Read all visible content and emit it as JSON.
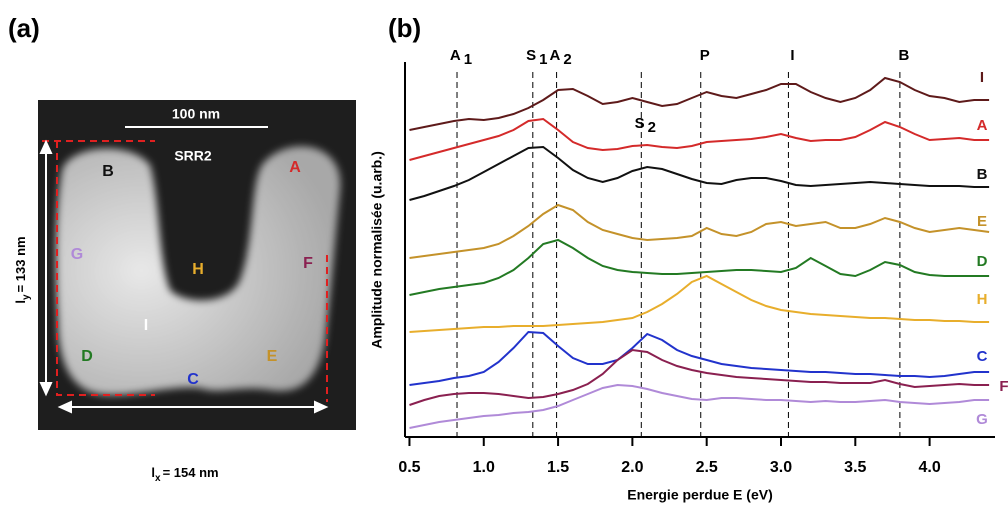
{
  "image_panel": {
    "panel_label": "(a)",
    "scale_bar": "100 nm",
    "name": "SRR2",
    "points": [
      "B",
      "A",
      "G",
      "H",
      "F",
      "I",
      "D",
      "E",
      "C"
    ],
    "ly": {
      "base": "l",
      "sub": "y",
      "text": "= 133 nm"
    },
    "lx": {
      "base": "l",
      "sub": "x",
      "text": "= 154 nm"
    }
  },
  "chart_data": {
    "type": "line",
    "panel_label": "(b)",
    "x_label": "Energie perdue E (eV)",
    "y_label": "Amplitude normalisée (u.arb.)",
    "xlim": [
      0.47,
      4.44
    ],
    "ylim": [
      0,
      375
    ],
    "xticks": [
      {
        "value": 0.5,
        "label": "0.5"
      },
      {
        "value": 1.0,
        "label": "1.0"
      },
      1.5,
      {
        "value": 2.0,
        "label": "2.0"
      },
      2.5,
      {
        "value": 3.0,
        "label": "3.0"
      },
      3.5,
      {
        "value": 4.0,
        "label": "4.0"
      }
    ],
    "markers": [
      {
        "label": "A",
        "sub": "1",
        "x": 0.82
      },
      {
        "label": "S",
        "sub": "1",
        "x": 1.33
      },
      {
        "label": "A",
        "sub": "2",
        "x": 1.49
      },
      {
        "label": "S",
        "sub": "2",
        "x": 2.06
      },
      {
        "label": "P",
        "x": 2.46
      },
      {
        "label": "I",
        "x": 3.05
      },
      {
        "label": "B",
        "x": 3.8
      }
    ],
    "x": [
      0.5,
      0.6,
      0.7,
      0.8,
      0.9,
      1.0,
      1.1,
      1.2,
      1.3,
      1.4,
      1.5,
      1.6,
      1.7,
      1.8,
      1.9,
      2.0,
      2.1,
      2.2,
      2.3,
      2.4,
      2.5,
      2.6,
      2.7,
      2.8,
      2.9,
      3.0,
      3.1,
      3.2,
      3.3,
      3.4,
      3.5,
      3.6,
      3.7,
      3.8,
      3.9,
      4.0,
      4.1,
      4.2,
      4.3,
      4.4
    ],
    "series": [
      {
        "name": "I",
        "color": "#5e1a1a",
        "values": [
          307,
          310,
          313,
          316,
          318,
          317,
          319,
          323,
          329,
          337,
          347,
          348,
          341,
          333,
          335,
          339,
          335,
          331,
          333,
          339,
          345,
          341,
          339,
          343,
          347,
          353,
          353,
          345,
          339,
          335,
          339,
          347,
          359,
          355,
          347,
          341,
          339,
          335,
          337,
          337
        ]
      },
      {
        "name": "A",
        "color": "#d42a2a",
        "values": [
          277,
          281,
          285,
          289,
          293,
          297,
          301,
          307,
          316,
          318,
          307,
          295,
          289,
          287,
          288,
          291,
          292,
          290,
          289,
          291,
          295,
          296,
          297,
          298,
          300,
          303,
          299,
          296,
          297,
          297,
          300,
          307,
          315,
          310,
          303,
          297,
          298,
          299,
          297,
          297
        ]
      },
      {
        "name": "B",
        "color": "#111111",
        "values": [
          237,
          241,
          246,
          251,
          257,
          265,
          273,
          281,
          289,
          290,
          279,
          267,
          259,
          255,
          259,
          266,
          270,
          268,
          263,
          258,
          254,
          253,
          257,
          259,
          259,
          256,
          252,
          251,
          252,
          253,
          254,
          255,
          254,
          253,
          252,
          251,
          251,
          251,
          250,
          250
        ]
      },
      {
        "name": "E",
        "color": "#c4922a",
        "values": [
          179,
          181,
          183,
          185,
          187,
          189,
          193,
          201,
          211,
          223,
          232,
          227,
          215,
          207,
          203,
          199,
          197,
          198,
          199,
          201,
          209,
          203,
          201,
          205,
          213,
          215,
          211,
          213,
          215,
          209,
          209,
          213,
          219,
          215,
          209,
          205,
          207,
          209,
          207,
          205
        ]
      },
      {
        "name": "D",
        "color": "#237a23",
        "values": [
          142,
          145,
          148,
          150,
          152,
          154,
          159,
          167,
          179,
          193,
          197,
          189,
          179,
          171,
          167,
          165,
          164,
          163,
          163,
          164,
          165,
          166,
          167,
          167,
          166,
          165,
          169,
          179,
          171,
          163,
          161,
          167,
          175,
          172,
          165,
          162,
          161,
          161,
          161,
          161
        ]
      },
      {
        "name": "H",
        "color": "#e8ae2c",
        "values": [
          105,
          106,
          107,
          108,
          109,
          110,
          110,
          111,
          111,
          111,
          112,
          113,
          114,
          115,
          117,
          119,
          125,
          133,
          143,
          155,
          161,
          153,
          145,
          137,
          131,
          127,
          125,
          123,
          122,
          121,
          120,
          119,
          119,
          118,
          117,
          117,
          116,
          116,
          115,
          115
        ]
      },
      {
        "name": "C",
        "color": "#2233cc",
        "values": [
          52,
          54,
          56,
          59,
          61,
          65,
          75,
          89,
          105,
          104,
          91,
          79,
          73,
          73,
          77,
          89,
          103,
          97,
          87,
          81,
          77,
          73,
          71,
          69,
          68,
          67,
          66,
          65,
          65,
          64,
          63,
          63,
          62,
          61,
          61,
          60,
          61,
          63,
          65,
          65
        ]
      },
      {
        "name": "F",
        "color": "#8a2050",
        "values": [
          32,
          37,
          41,
          43,
          44,
          44,
          43,
          41,
          39,
          40,
          43,
          47,
          53,
          63,
          77,
          87,
          85,
          77,
          71,
          67,
          64,
          62,
          60,
          59,
          58,
          57,
          56,
          55,
          55,
          54,
          54,
          54,
          57,
          53,
          50,
          51,
          52,
          53,
          52,
          52
        ]
      },
      {
        "name": "G",
        "color": "#b08ad8",
        "values": [
          9,
          12,
          15,
          17,
          19,
          21,
          22,
          24,
          25,
          27,
          31,
          37,
          43,
          49,
          52,
          51,
          48,
          44,
          41,
          38,
          37,
          39,
          39,
          38,
          37,
          37,
          36,
          35,
          36,
          35,
          35,
          36,
          37,
          35,
          34,
          33,
          34,
          35,
          37,
          37
        ]
      }
    ]
  }
}
